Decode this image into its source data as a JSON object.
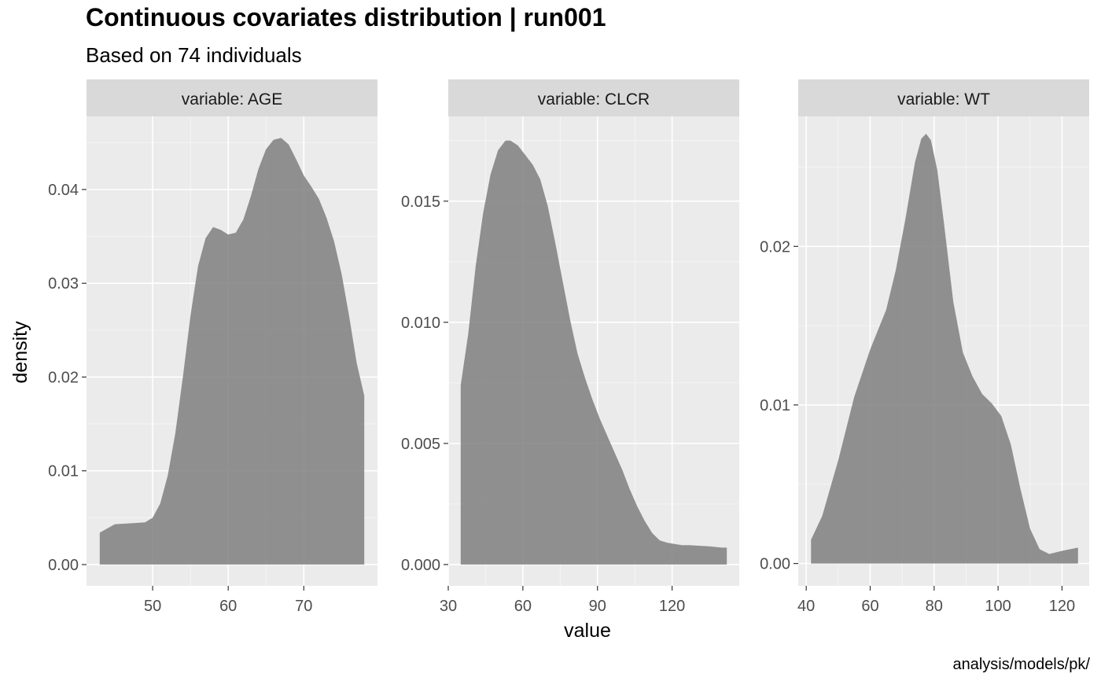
{
  "chart_data": {
    "type": "area",
    "title": "Continuous covariates distribution | run001",
    "subtitle": "Based on 74 individuals",
    "xlabel": "value",
    "ylabel": "density",
    "caption": "analysis/models/pk/",
    "grid": true,
    "colors": {
      "panel_bg": "#ebebeb",
      "strip_bg": "#d9d9d9",
      "grid": "#ffffff",
      "fill": "#7f7f7f",
      "tick_text": "#4d4d4d"
    },
    "panels": [
      {
        "strip_label": "variable: AGE",
        "xlim": [
          41.25,
          79.75
        ],
        "ylim": [
          -0.00227,
          0.0478
        ],
        "x_ticks": [
          50,
          60,
          70
        ],
        "x_tick_labels": [
          "50",
          "60",
          "70"
        ],
        "y_ticks": [
          0,
          0.01,
          0.02,
          0.03,
          0.04
        ],
        "y_tick_labels": [
          "0.00",
          "0.01",
          "0.02",
          "0.03",
          "0.04"
        ],
        "x": [
          43,
          45,
          47,
          49,
          50,
          51,
          52,
          53,
          54,
          55,
          56,
          57,
          58,
          59,
          60,
          61,
          62,
          63,
          64,
          65,
          66,
          67,
          68,
          69,
          70,
          71,
          72,
          73,
          74,
          75,
          76,
          77,
          78
        ],
        "y": [
          0.0034,
          0.0043,
          0.0044,
          0.0045,
          0.005,
          0.0065,
          0.0095,
          0.014,
          0.02,
          0.0265,
          0.0318,
          0.0348,
          0.036,
          0.0357,
          0.0352,
          0.0354,
          0.0368,
          0.0393,
          0.0422,
          0.0443,
          0.0453,
          0.0455,
          0.0448,
          0.0432,
          0.0415,
          0.0403,
          0.039,
          0.037,
          0.0345,
          0.031,
          0.0265,
          0.0215,
          0.018
        ]
      },
      {
        "strip_label": "variable: CLCR",
        "xlim": [
          30,
          147
        ],
        "ylim": [
          -0.00088,
          0.0185
        ],
        "x_ticks": [
          30,
          60,
          90,
          120
        ],
        "x_tick_labels": [
          "30",
          "60",
          "90",
          "120"
        ],
        "y_ticks": [
          0,
          0.005,
          0.01,
          0.015
        ],
        "y_tick_labels": [
          "0.000",
          "0.005",
          "0.010",
          "0.015"
        ],
        "x": [
          35,
          38,
          41,
          44,
          47,
          50,
          53,
          55,
          58,
          61,
          64,
          67,
          70,
          73,
          76,
          79,
          82,
          85,
          88,
          91,
          94,
          97,
          100,
          103,
          106,
          109,
          112,
          115,
          118,
          121,
          124,
          127,
          130,
          135,
          140,
          142
        ],
        "y": [
          0.0074,
          0.0095,
          0.0123,
          0.0145,
          0.0161,
          0.0171,
          0.0175,
          0.0175,
          0.0173,
          0.0169,
          0.0165,
          0.0159,
          0.0148,
          0.0133,
          0.0117,
          0.0101,
          0.0087,
          0.0077,
          0.0068,
          0.006,
          0.0053,
          0.0046,
          0.0039,
          0.0031,
          0.0024,
          0.0018,
          0.0013,
          0.001,
          0.0009,
          0.00085,
          0.0008,
          0.0008,
          0.00078,
          0.00075,
          0.0007,
          0.0007
        ]
      },
      {
        "strip_label": "variable: WT",
        "xlim": [
          37.5,
          128.5
        ],
        "ylim": [
          -0.00141,
          0.0282
        ],
        "x_ticks": [
          40,
          60,
          80,
          100,
          120
        ],
        "x_tick_labels": [
          "40",
          "60",
          "80",
          "100",
          "120"
        ],
        "y_ticks": [
          0,
          0.01,
          0.02
        ],
        "y_tick_labels": [
          "0.00",
          "0.01",
          "0.02"
        ],
        "x": [
          41.5,
          45,
          50,
          55,
          60,
          65,
          68,
          71,
          74,
          76,
          77.5,
          79,
          81,
          83,
          86,
          89,
          92,
          95,
          98,
          101,
          104,
          107,
          110,
          113,
          116,
          120,
          125
        ],
        "y": [
          0.0015,
          0.003,
          0.0065,
          0.0105,
          0.0135,
          0.016,
          0.0185,
          0.0217,
          0.0253,
          0.0268,
          0.0271,
          0.0267,
          0.0248,
          0.0216,
          0.0165,
          0.0133,
          0.0118,
          0.0107,
          0.0101,
          0.0093,
          0.0075,
          0.0047,
          0.0022,
          0.0009,
          0.0006,
          0.0008,
          0.001
        ]
      }
    ]
  }
}
